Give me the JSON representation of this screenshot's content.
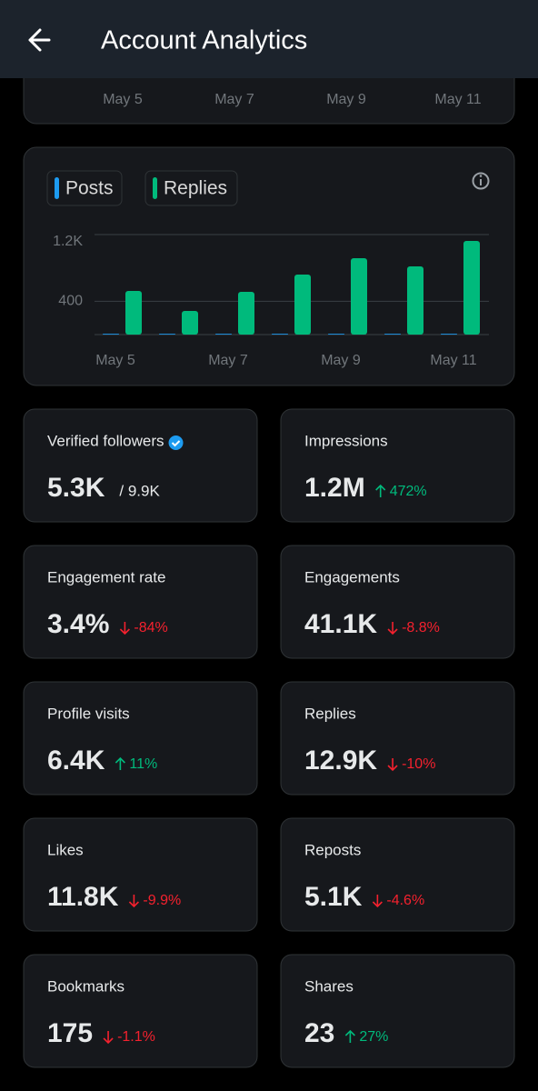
{
  "header": {
    "title": "Account Analytics"
  },
  "top_chart": {
    "x_labels": [
      "May 5",
      "May 7",
      "May 9",
      "May 11"
    ]
  },
  "chart_data": {
    "type": "bar",
    "categories": [
      "May 5",
      null,
      "May 7",
      null,
      "May 9",
      null,
      "May 11"
    ],
    "series": [
      {
        "name": "Posts",
        "color": "#1d9bf0",
        "values": [
          10,
          10,
          10,
          10,
          10,
          10,
          10
        ]
      },
      {
        "name": "Replies",
        "color": "#00ba7c",
        "values": [
          524,
          284,
          513,
          720,
          916,
          818,
          1124
        ]
      }
    ],
    "ylim": [
      0,
      1200
    ],
    "yticks": [
      400,
      {
        "value": 1200,
        "label": "1.2K"
      }
    ],
    "grid": true
  },
  "stats": [
    {
      "label": "Verified followers",
      "value": "5.3K",
      "total": "/ 9.9K"
    },
    {
      "label": "Impressions",
      "value": "1.2M",
      "change": "472%",
      "direction": "up"
    },
    {
      "label": "Engagement rate",
      "value": "3.4%",
      "change": "-84%",
      "direction": "down"
    },
    {
      "label": "Engagements",
      "value": "41.1K",
      "change": "-8.8%",
      "direction": "down"
    },
    {
      "label": "Profile visits",
      "value": "6.4K",
      "change": "11%",
      "direction": "up"
    },
    {
      "label": "Replies",
      "value": "12.9K",
      "change": "-10%",
      "direction": "down"
    },
    {
      "label": "Likes",
      "value": "11.8K",
      "change": "-9.9%",
      "direction": "down"
    },
    {
      "label": "Reposts",
      "value": "5.1K",
      "change": "-4.6%",
      "direction": "down"
    },
    {
      "label": "Bookmarks",
      "value": "175",
      "change": "-1.1%",
      "direction": "down"
    },
    {
      "label": "Shares",
      "value": "23",
      "change": "27%",
      "direction": "up"
    }
  ]
}
